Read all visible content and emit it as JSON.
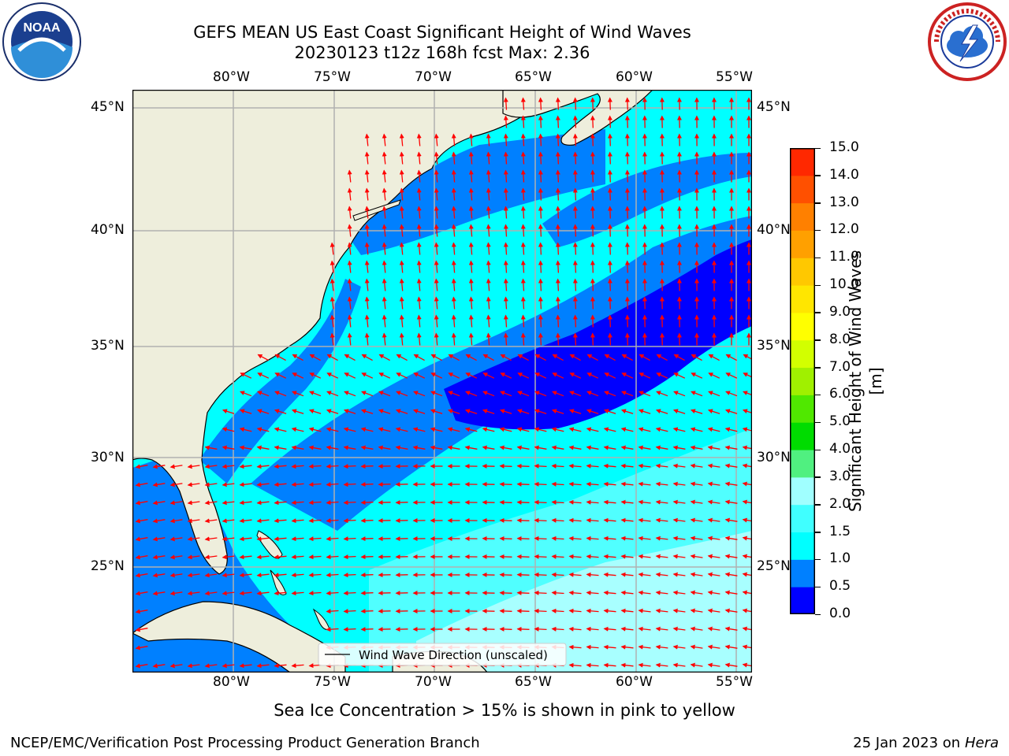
{
  "header": {
    "title_line1": "GEFS MEAN US East Coast Significant Height of Wind Waves",
    "title_line2": "20230123 t12z 168h fcst   Max: 2.36"
  },
  "logos": {
    "left": {
      "icon": "noaa-logo",
      "text": "NOAA",
      "ring_text": "NATIONAL OCEANIC AND ATMOSPHERIC ADMINISTRATION · U.S. DEPARTMENT OF COMMERCE"
    },
    "right": {
      "icon": "nws-logo",
      "ring_text": "NATIONAL WEATHER SERVICE"
    }
  },
  "map": {
    "lon_ticks": [
      "80°W",
      "75°W",
      "70°W",
      "65°W",
      "60°W",
      "55°W"
    ],
    "lat_ticks": [
      "45°N",
      "40°N",
      "35°N",
      "30°N",
      "25°N"
    ],
    "legend_label": "Wind Wave Direction (unscaled)",
    "colors": {
      "land": "#eeeedc",
      "arrow": "#ff0000",
      "grid": "#b0b0b0"
    }
  },
  "colorbar": {
    "label": "Significant Height of Wind Waves [m]",
    "ticks": [
      "15.0",
      "14.0",
      "13.0",
      "12.0",
      "11.0",
      "10.0",
      "9.0",
      "8.0",
      "7.0",
      "6.0",
      "5.0",
      "4.0",
      "3.0",
      "2.0",
      "1.5",
      "1.0",
      "0.5",
      "0.0"
    ],
    "colors_bottom_to_top": [
      "#0000ff",
      "#0080ff",
      "#00ffff",
      "#40ffff",
      "#a0ffff",
      "#50f080",
      "#00dc00",
      "#50e800",
      "#a0f000",
      "#d2ff00",
      "#ffff00",
      "#ffe600",
      "#ffc800",
      "#ffa000",
      "#ff8000",
      "#ff5000",
      "#ff2800",
      "#ff0000"
    ]
  },
  "note": "Sea Ice Concentration > 15% is shown in pink to yellow",
  "footer": {
    "left": "NCEP/EMC/Verification Post Processing Product Generation Branch",
    "date": "25 Jan 2023 on",
    "machine": "Hera"
  }
}
